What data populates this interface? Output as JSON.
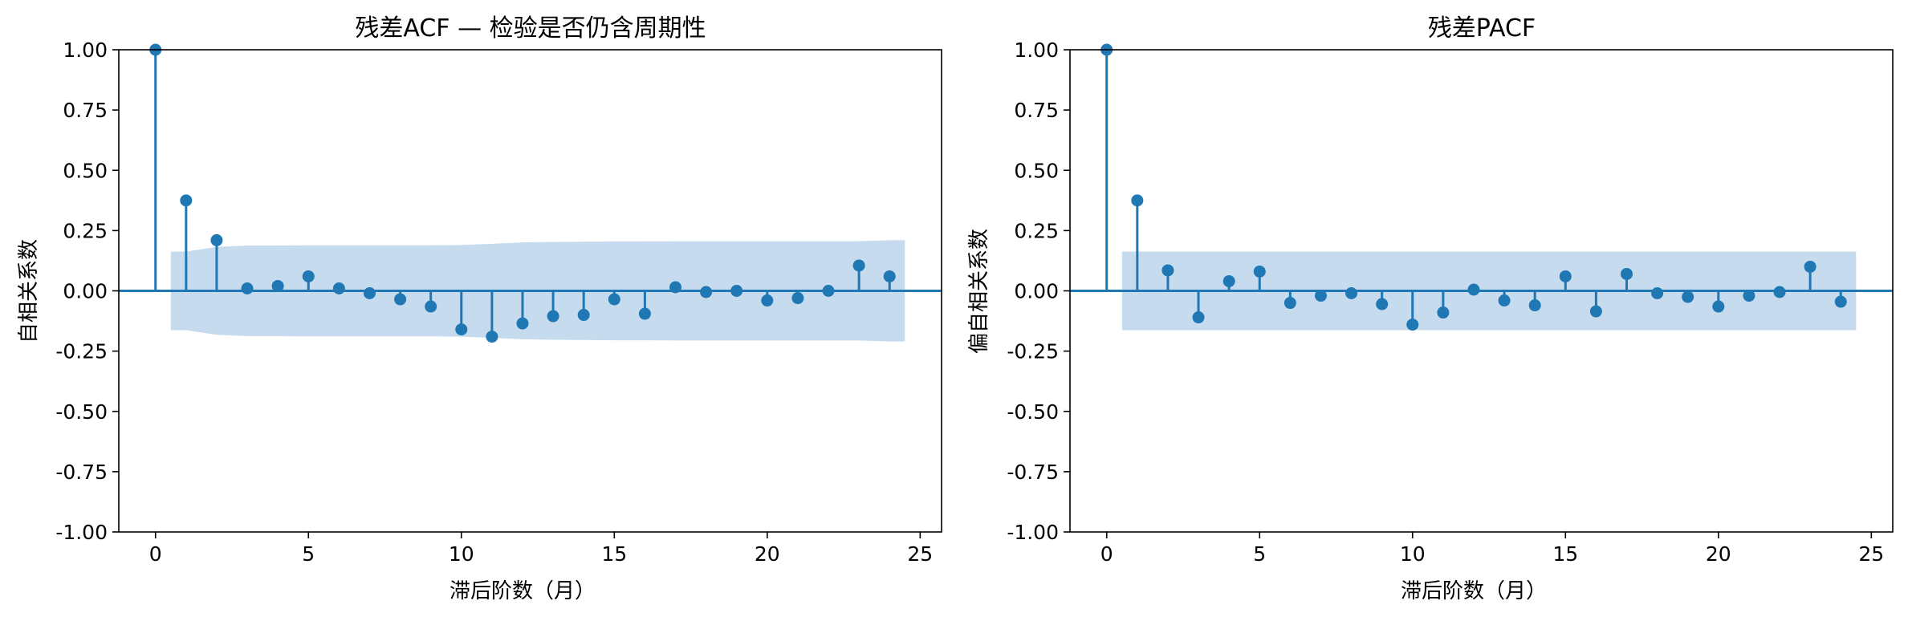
{
  "chart_data": [
    {
      "type": "stem",
      "title": "残差ACF — 检验是否仍含周期性",
      "xlabel": "滞后阶数（月）",
      "ylabel": "自相关系数",
      "xlim": [
        -1.2,
        25.7
      ],
      "ylim": [
        -1.0,
        1.0
      ],
      "xticks": [
        0,
        5,
        10,
        15,
        20,
        25
      ],
      "yticks": [
        1.0,
        0.75,
        0.5,
        0.25,
        0.0,
        -0.25,
        -0.5,
        -0.75,
        -1.0
      ],
      "ytick_labels": [
        "1.00",
        "0.75",
        "0.50",
        "0.25",
        "0.00",
        "-0.25",
        "-0.50",
        "-0.75",
        "-1.00"
      ],
      "x": [
        0,
        1,
        2,
        3,
        4,
        5,
        6,
        7,
        8,
        9,
        10,
        11,
        12,
        13,
        14,
        15,
        16,
        17,
        18,
        19,
        20,
        21,
        22,
        23,
        24
      ],
      "values": [
        1.0,
        0.375,
        0.21,
        0.01,
        0.02,
        0.06,
        0.01,
        -0.01,
        -0.035,
        -0.065,
        -0.16,
        -0.19,
        -0.135,
        -0.105,
        -0.1,
        -0.035,
        -0.095,
        0.015,
        -0.005,
        0.0,
        -0.04,
        -0.03,
        0.0,
        0.105,
        0.06
      ],
      "confidence_band": {
        "x": [
          0.5,
          1,
          2,
          3,
          4,
          5,
          6,
          7,
          8,
          9,
          10,
          11,
          12,
          13,
          14,
          15,
          16,
          17,
          18,
          19,
          20,
          21,
          22,
          23,
          24,
          24.5
        ],
        "upper": [
          0.163,
          0.163,
          0.182,
          0.188,
          0.188,
          0.189,
          0.189,
          0.189,
          0.189,
          0.189,
          0.19,
          0.195,
          0.201,
          0.203,
          0.204,
          0.205,
          0.205,
          0.206,
          0.206,
          0.206,
          0.206,
          0.206,
          0.206,
          0.206,
          0.21,
          0.21
        ],
        "color": "#c6dbed"
      },
      "grid": false,
      "color": "#1f77b4"
    },
    {
      "type": "stem",
      "title": "残差PACF",
      "xlabel": "滞后阶数（月）",
      "ylabel": "偏自相关系数",
      "xlim": [
        -1.2,
        25.7
      ],
      "ylim": [
        -1.0,
        1.0
      ],
      "xticks": [
        0,
        5,
        10,
        15,
        20,
        25
      ],
      "yticks": [
        1.0,
        0.75,
        0.5,
        0.25,
        0.0,
        -0.25,
        -0.5,
        -0.75,
        -1.0
      ],
      "ytick_labels": [
        "1.00",
        "0.75",
        "0.50",
        "0.25",
        "0.00",
        "-0.25",
        "-0.50",
        "-0.75",
        "-1.00"
      ],
      "x": [
        0,
        1,
        2,
        3,
        4,
        5,
        6,
        7,
        8,
        9,
        10,
        11,
        12,
        13,
        14,
        15,
        16,
        17,
        18,
        19,
        20,
        21,
        22,
        23,
        24
      ],
      "values": [
        1.0,
        0.375,
        0.085,
        -0.11,
        0.04,
        0.08,
        -0.05,
        -0.02,
        -0.01,
        -0.055,
        -0.14,
        -0.09,
        0.005,
        -0.04,
        -0.06,
        0.06,
        -0.085,
        0.07,
        -0.01,
        -0.025,
        -0.065,
        -0.02,
        -0.005,
        0.1,
        -0.045
      ],
      "confidence_band": {
        "x": [
          0.5,
          24.5
        ],
        "upper": [
          0.163,
          0.163
        ],
        "color": "#c6dbed"
      },
      "grid": false,
      "color": "#1f77b4"
    }
  ]
}
